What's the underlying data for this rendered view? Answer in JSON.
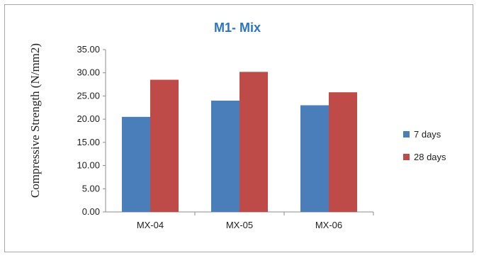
{
  "chart_data": {
    "type": "bar",
    "title": "M1- Mix",
    "title_color": "#2e74c4",
    "xlabel": "",
    "ylabel": "Compressive Strength (N/mm2)",
    "ylim": [
      0,
      35
    ],
    "ytick_step": 5,
    "ytick_labels": [
      "0.00",
      "5.00",
      "10.00",
      "15.00",
      "20.00",
      "25.00",
      "30.00",
      "35.00"
    ],
    "grid": false,
    "legend_position": "right",
    "categories": [
      "MX-04",
      "MX-05",
      "MX-06"
    ],
    "series": [
      {
        "name": "7 days",
        "color": "#4a7ebb",
        "values": [
          20.5,
          24.0,
          23.0
        ]
      },
      {
        "name": "28 days",
        "color": "#be4b48",
        "values": [
          28.5,
          30.2,
          25.8
        ]
      }
    ]
  }
}
